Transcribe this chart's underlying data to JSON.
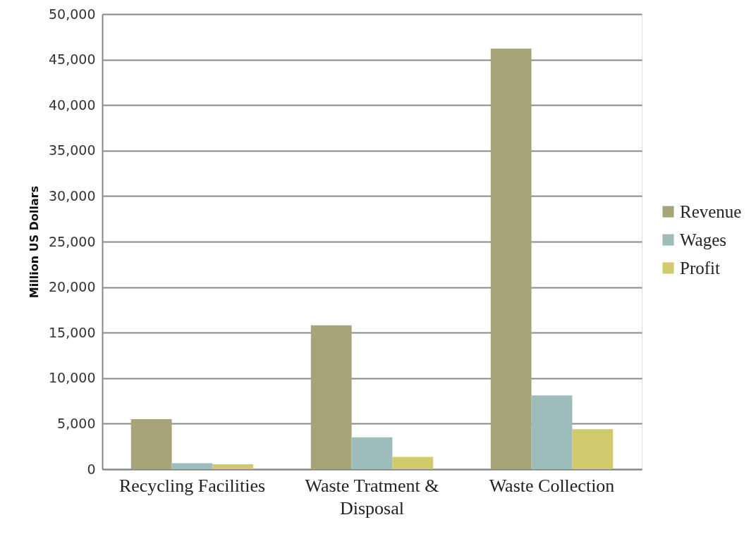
{
  "chart_data": {
    "type": "bar",
    "ylabel": "Million US Dollars",
    "categories": [
      "Recycling Facilities",
      "Waste Tratment & Disposal",
      "Waste Collection"
    ],
    "series": [
      {
        "name": "Revenue",
        "color": "#a8a47a",
        "values": [
          5500,
          15800,
          46200
        ]
      },
      {
        "name": "Wages",
        "color": "#9dbcbc",
        "values": [
          650,
          3500,
          8100
        ]
      },
      {
        "name": "Profit",
        "color": "#d1ca6c",
        "values": [
          550,
          1350,
          4400
        ]
      }
    ],
    "ylim": [
      0,
      50000
    ],
    "yticks": [
      0,
      {
        "value": 5000,
        "label": "5,000"
      },
      {
        "value": 10000,
        "label": "10,000"
      },
      {
        "value": 15000,
        "label": "15,000"
      },
      {
        "value": 20000,
        "label": "20,000"
      },
      {
        "value": 25000,
        "label": "25,000"
      },
      {
        "value": 30000,
        "label": "30,000"
      },
      {
        "value": 35000,
        "label": "35,000"
      },
      {
        "value": 40000,
        "label": "40,000"
      },
      {
        "value": 45000,
        "label": "45,000"
      },
      {
        "value": 50000,
        "label": "50,000"
      }
    ],
    "grid": "y",
    "legend": "right"
  }
}
